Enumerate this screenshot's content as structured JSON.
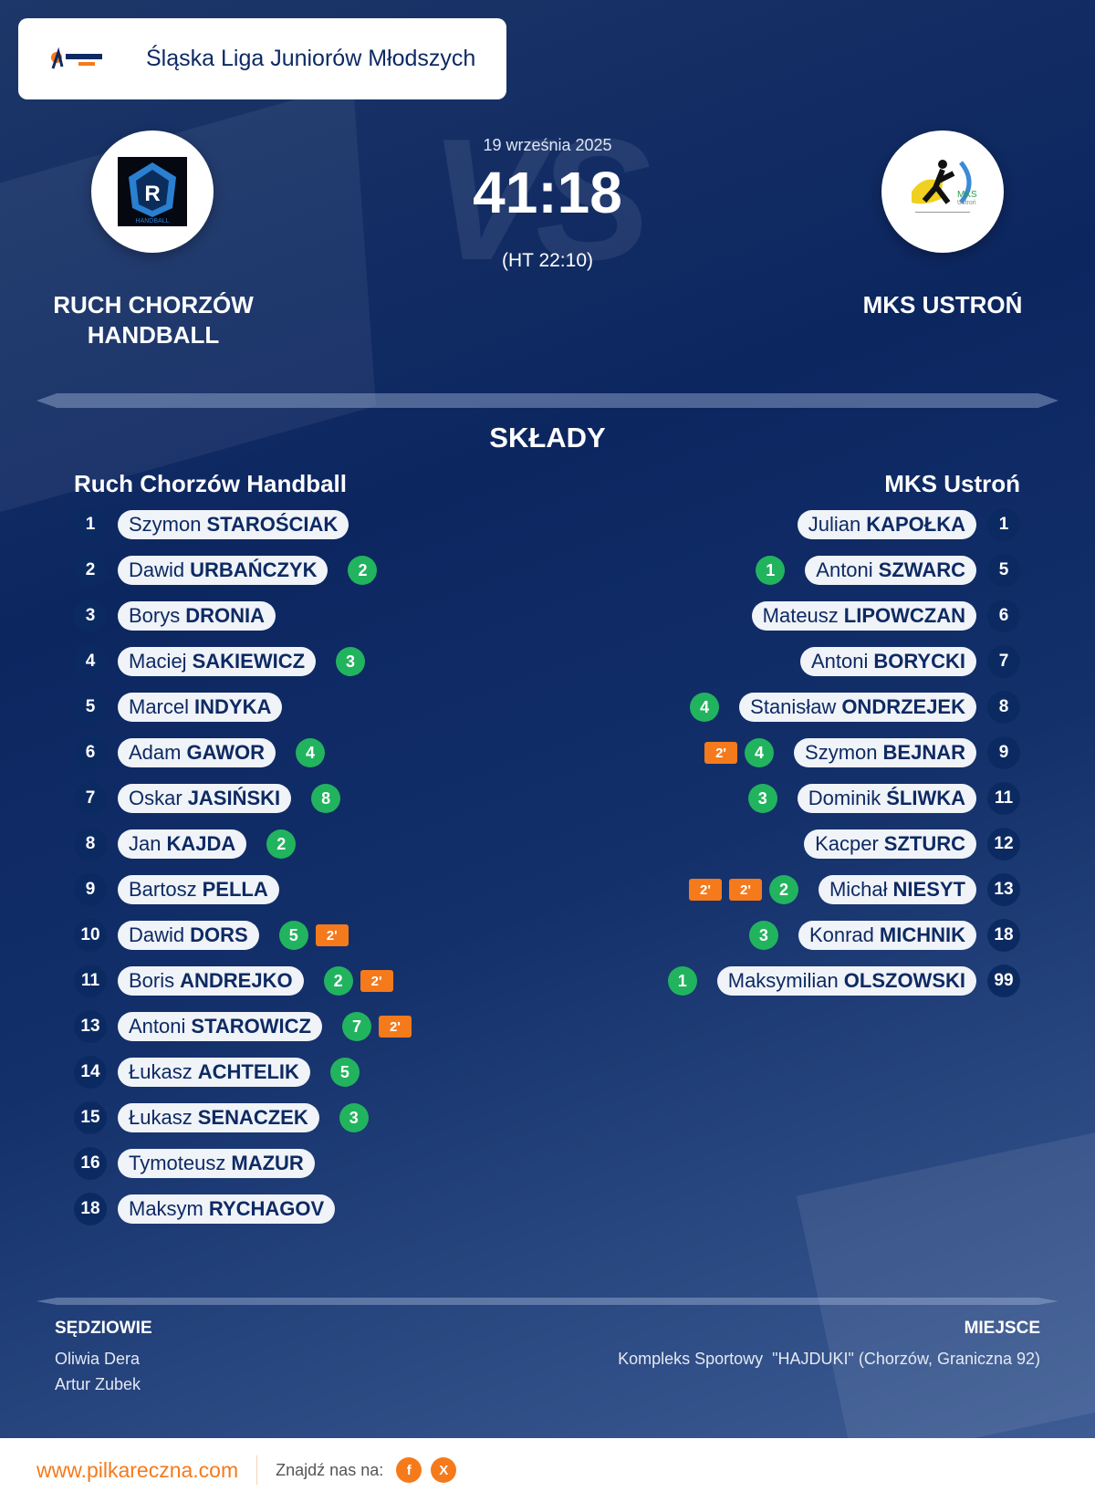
{
  "league": {
    "title": "Śląska Liga Juniorów Młodszych",
    "logo_text": "pilkareczna.com"
  },
  "match": {
    "date": "19 września 2025",
    "score": "41:18",
    "halftime": "(HT 22:10)",
    "vs": "VS"
  },
  "home": {
    "name_upper": "RUCH CHORZÓW HANDBALL",
    "name": "Ruch Chorzów Handball",
    "logo_text": "RUCH CHORZÓW HANDBALL",
    "players": [
      {
        "num": "1",
        "first": "Szymon",
        "last": "STAROŚCIAK",
        "goals": null,
        "pens": 0
      },
      {
        "num": "2",
        "first": "Dawid",
        "last": "URBAŃCZYK",
        "goals": "2",
        "pens": 0
      },
      {
        "num": "3",
        "first": "Borys",
        "last": "DRONIA",
        "goals": null,
        "pens": 0
      },
      {
        "num": "4",
        "first": "Maciej",
        "last": "SAKIEWICZ",
        "goals": "3",
        "pens": 0
      },
      {
        "num": "5",
        "first": "Marcel",
        "last": "INDYKA",
        "goals": null,
        "pens": 0
      },
      {
        "num": "6",
        "first": "Adam",
        "last": "GAWOR",
        "goals": "4",
        "pens": 0
      },
      {
        "num": "7",
        "first": "Oskar",
        "last": "JASIŃSKI",
        "goals": "8",
        "pens": 0
      },
      {
        "num": "8",
        "first": "Jan",
        "last": "KAJDA",
        "goals": "2",
        "pens": 0
      },
      {
        "num": "9",
        "first": "Bartosz",
        "last": "PELLA",
        "goals": null,
        "pens": 0
      },
      {
        "num": "10",
        "first": "Dawid",
        "last": "DORS",
        "goals": "5",
        "pens": 1
      },
      {
        "num": "11",
        "first": "Boris",
        "last": "ANDREJKO",
        "goals": "2",
        "pens": 1
      },
      {
        "num": "13",
        "first": "Antoni",
        "last": "STAROWICZ",
        "goals": "7",
        "pens": 1
      },
      {
        "num": "14",
        "first": "Łukasz",
        "last": "ACHTELIK",
        "goals": "5",
        "pens": 0
      },
      {
        "num": "15",
        "first": "Łukasz",
        "last": "SENACZEK",
        "goals": "3",
        "pens": 0
      },
      {
        "num": "16",
        "first": "Tymoteusz",
        "last": "MAZUR",
        "goals": null,
        "pens": 0
      },
      {
        "num": "18",
        "first": "Maksym",
        "last": "RYCHAGOV",
        "goals": null,
        "pens": 0
      }
    ]
  },
  "away": {
    "name_upper": "MKS USTROŃ",
    "name": "MKS Ustroń",
    "logo_text": "MKS Ustroń",
    "players": [
      {
        "num": "1",
        "first": "Julian",
        "last": "KAPOŁKA",
        "goals": null,
        "pens": 0
      },
      {
        "num": "5",
        "first": "Antoni",
        "last": "SZWARC",
        "goals": "1",
        "pens": 0
      },
      {
        "num": "6",
        "first": "Mateusz",
        "last": "LIPOWCZAN",
        "goals": null,
        "pens": 0
      },
      {
        "num": "7",
        "first": "Antoni",
        "last": "BORYCKI",
        "goals": null,
        "pens": 0
      },
      {
        "num": "8",
        "first": "Stanisław",
        "last": "ONDRZEJEK",
        "goals": "4",
        "pens": 0
      },
      {
        "num": "9",
        "first": "Szymon",
        "last": "BEJNAR",
        "goals": "4",
        "pens": 1
      },
      {
        "num": "11",
        "first": "Dominik",
        "last": "ŚLIWKA",
        "goals": "3",
        "pens": 0
      },
      {
        "num": "12",
        "first": "Kacper",
        "last": "SZTURC",
        "goals": null,
        "pens": 0
      },
      {
        "num": "13",
        "first": "Michał",
        "last": "NIESYT",
        "goals": "2",
        "pens": 2
      },
      {
        "num": "18",
        "first": "Konrad",
        "last": "MICHNIK",
        "goals": "3",
        "pens": 0
      },
      {
        "num": "99",
        "first": "Maksymilian",
        "last": "OLSZOWSKI",
        "goals": "1",
        "pens": 0
      }
    ]
  },
  "penalty_label": "2'",
  "lineups_title": "SKŁADY",
  "referees": {
    "label": "SĘDZIOWIE",
    "names": [
      "Oliwia Dera",
      "Artur Zubek"
    ]
  },
  "venue": {
    "label": "MIEJSCE",
    "value": "Kompleks Sportowy  \"HAJDUKI\" (Chorzów, Graniczna 92)"
  },
  "footer": {
    "site": "www.pilkareczna.com",
    "find_us": "Znajdź nas na:",
    "social": [
      {
        "icon": "facebook-icon",
        "label": "f"
      },
      {
        "icon": "x-icon",
        "label": "X"
      }
    ]
  },
  "colors": {
    "goal": "#22b35e",
    "penalty": "#f57a1c",
    "navy": "#0c2a62",
    "accent": "#f57a1c"
  }
}
